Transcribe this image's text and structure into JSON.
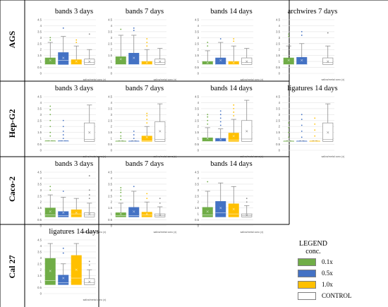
{
  "colors": {
    "c01": "#70AD47",
    "c05": "#4472C4",
    "c10": "#FFC000",
    "control": "#FFFFFF",
    "outline": "#7F7F7F",
    "frame": "#000000",
    "grid": "#E3E3E3"
  },
  "legend": {
    "title_line1": "LEGEND",
    "title_line2": "conc.",
    "items": [
      {
        "label": "0.1x",
        "color": "#70AD47"
      },
      {
        "label": "0.5x",
        "color": "#4472C4"
      },
      {
        "label": "1.0x",
        "color": "#FFC000"
      },
      {
        "label": "CONTROL",
        "color": "#FFFFFF"
      }
    ]
  },
  "rows": [
    {
      "label": "AGS"
    },
    {
      "label": "Hep-G2"
    },
    {
      "label": "Caco-2"
    },
    {
      "label": "Cal 27"
    }
  ],
  "chart_data": [
    {
      "type": "box",
      "row": "AGS",
      "title": "bands 3 days",
      "xlabel": "saliva/metal conc (x)",
      "ylim": [
        0,
        4.5
      ],
      "yticks": [
        "0",
        "0.5",
        "1",
        "1.5",
        "2",
        "2.5",
        "3",
        "3.5",
        "4",
        "4.5"
      ],
      "grid": true,
      "series": [
        {
          "group": "0.1x",
          "min": 0.75,
          "q1": 0.75,
          "median": 0.75,
          "q3": 1.3,
          "max": 2.6,
          "mean": 1.1,
          "outliers": [
            2.8,
            3.0
          ]
        },
        {
          "group": "0.5x",
          "min": 0.75,
          "q1": 0.75,
          "median": 1.1,
          "q3": 1.75,
          "max": 3.1,
          "mean": 1.3,
          "outliers": [
            3.8
          ]
        },
        {
          "group": "1.0x",
          "min": 0.75,
          "q1": 0.75,
          "median": 0.75,
          "q3": 1.15,
          "max": 2.3,
          "mean": 1.0,
          "outliers": [
            2.6,
            2.8
          ]
        },
        {
          "group": "CONTROL",
          "min": 0.75,
          "q1": 0.75,
          "median": 0.9,
          "q3": 1.2,
          "max": 2.0,
          "mean": 1.0,
          "outliers": [
            3.3
          ]
        }
      ]
    },
    {
      "type": "box",
      "row": "AGS",
      "title": "bands 7 days",
      "xlabel": "saliva/metal conc (x)",
      "ylim": [
        0,
        4.5
      ],
      "yticks": [
        "0",
        "0.5",
        "1",
        "1.5",
        "2",
        "2.5",
        "3",
        "3.5",
        "4",
        "4.5"
      ],
      "grid": true,
      "series": [
        {
          "group": "0.1x",
          "min": 0.75,
          "q1": 0.75,
          "median": 0.75,
          "q3": 1.4,
          "max": 3.2,
          "mean": 1.2,
          "outliers": [
            3.7
          ]
        },
        {
          "group": "0.5x",
          "min": 0.75,
          "q1": 0.75,
          "median": 0.75,
          "q3": 1.7,
          "max": 3.2,
          "mean": 1.3,
          "outliers": [
            3.6,
            3.8
          ]
        },
        {
          "group": "1.0x",
          "min": 0.75,
          "q1": 0.75,
          "median": 0.75,
          "q3": 1.0,
          "max": 2.0,
          "mean": 0.9,
          "outliers": [
            2.3,
            2.6,
            2.9
          ]
        },
        {
          "group": "CONTROL",
          "min": 0.75,
          "q1": 0.75,
          "median": 0.9,
          "q3": 1.2,
          "max": 2.1,
          "mean": 1.0,
          "outliers": []
        }
      ]
    },
    {
      "type": "box",
      "row": "AGS",
      "title": "bands 14 days",
      "xlabel": "saliva/metal conc (x)",
      "ylim": [
        0,
        4.5
      ],
      "yticks": [
        "0",
        "0.5",
        "1",
        "1.5",
        "2",
        "2.5",
        "3",
        "3.5",
        "4",
        "4.5"
      ],
      "grid": true,
      "series": [
        {
          "group": "0.1x",
          "min": 0.75,
          "q1": 0.75,
          "median": 0.75,
          "q3": 1.0,
          "max": 1.9,
          "mean": 0.9,
          "outliers": [
            2.3,
            2.6
          ]
        },
        {
          "group": "0.5x",
          "min": 0.75,
          "q1": 0.75,
          "median": 0.75,
          "q3": 1.3,
          "max": 2.6,
          "mean": 1.1,
          "outliers": [
            2.9
          ]
        },
        {
          "group": "1.0x",
          "min": 0.75,
          "q1": 0.75,
          "median": 0.75,
          "q3": 1.0,
          "max": 2.3,
          "mean": 0.9,
          "outliers": [
            2.7,
            2.9
          ]
        },
        {
          "group": "CONTROL",
          "min": 0.75,
          "q1": 0.75,
          "median": 0.9,
          "q3": 1.3,
          "max": 2.1,
          "mean": 1.0,
          "outliers": []
        }
      ]
    },
    {
      "type": "box",
      "row": "AGS",
      "title": "archwires 7 days",
      "xlabel": "saliva/metal conc (x)",
      "ylim": [
        0,
        4.5
      ],
      "yticks": [
        "0",
        "0.5",
        "1",
        "1.5",
        "2",
        "2.5",
        "3",
        "3.5",
        "4",
        "4.5"
      ],
      "grid": true,
      "series": [
        {
          "group": "0.1x",
          "min": 0.75,
          "q1": 0.75,
          "median": 0.75,
          "q3": 1.3,
          "max": 2.3,
          "mean": 1.1,
          "outliers": [
            3.1,
            3.3
          ]
        },
        {
          "group": "0.5x",
          "min": 0.75,
          "q1": 0.75,
          "median": 0.75,
          "q3": 1.35,
          "max": 2.5,
          "mean": 1.1,
          "outliers": [
            3.2,
            3.5
          ]
        },
        {
          "group": "CONTROL",
          "min": 0.75,
          "q1": 0.75,
          "median": 0.9,
          "q3": 1.3,
          "max": 2.3,
          "mean": 1.0,
          "outliers": [
            3.4
          ]
        }
      ]
    },
    {
      "type": "box",
      "row": "Hep-G2",
      "title": "bands 3 days",
      "xlabel": "saliva/metal conc (x)",
      "ylim": [
        0,
        4.5
      ],
      "yticks": [
        "0",
        "0.5",
        "1",
        "1.5",
        "2",
        "2.5",
        "3",
        "3.5",
        "4",
        "4.5"
      ],
      "grid": true,
      "series": [
        {
          "group": "0.1x",
          "min": 0.75,
          "q1": 0.75,
          "median": 0.75,
          "q3": 0.8,
          "max": 0.8,
          "mean": 0.8,
          "outliers": [
            1.2,
            1.5,
            2.0,
            2.5,
            3.0,
            3.4,
            3.7
          ]
        },
        {
          "group": "0.5x",
          "min": 0.75,
          "q1": 0.75,
          "median": 0.75,
          "q3": 0.8,
          "max": 0.8,
          "mean": 0.8,
          "outliers": [
            1.0,
            1.3,
            1.6,
            2.0,
            2.5
          ]
        },
        {
          "group": "CONTROL",
          "min": 0.75,
          "q1": 0.75,
          "median": 0.9,
          "q3": 2.3,
          "max": 3.8,
          "mean": 1.5,
          "outliers": []
        }
      ]
    },
    {
      "type": "box",
      "row": "Hep-G2",
      "title": "bands 7 days",
      "xlabel": "saliva/metal conc (x)",
      "ylim": [
        0,
        4.5
      ],
      "yticks": [
        "0",
        "0.5",
        "1",
        "1.5",
        "2",
        "2.5",
        "3",
        "3.5",
        "4",
        "4.5"
      ],
      "grid": true,
      "series": [
        {
          "group": "0.1x",
          "min": 0.75,
          "q1": 0.75,
          "median": 0.75,
          "q3": 0.78,
          "max": 0.8,
          "mean": 0.8,
          "outliers": [
            1.0,
            1.2,
            1.5
          ]
        },
        {
          "group": "0.5x",
          "min": 0.75,
          "q1": 0.75,
          "median": 0.75,
          "q3": 0.78,
          "max": 0.8,
          "mean": 0.8,
          "outliers": [
            1.0,
            1.3,
            1.6
          ]
        },
        {
          "group": "1.0x",
          "min": 0.75,
          "q1": 0.75,
          "median": 0.8,
          "q3": 1.2,
          "max": 2.0,
          "mean": 1.1,
          "outliers": [
            2.3,
            2.6,
            2.9,
            3.1
          ]
        },
        {
          "group": "CONTROL",
          "min": 0.75,
          "q1": 0.75,
          "median": 0.9,
          "q3": 2.4,
          "max": 3.9,
          "mean": 1.6,
          "outliers": []
        }
      ]
    },
    {
      "type": "box",
      "row": "Hep-G2",
      "title": "bands 14 days",
      "xlabel": "saliva/metal conc (x)",
      "ylim": [
        0,
        4.5
      ],
      "yticks": [
        "0",
        "0.5",
        "1",
        "1.5",
        "2",
        "2.5",
        "3",
        "3.5",
        "4",
        "4.5"
      ],
      "grid": true,
      "series": [
        {
          "group": "0.1x",
          "min": 0.75,
          "q1": 0.75,
          "median": 0.75,
          "q3": 1.05,
          "max": 1.9,
          "mean": 1.0,
          "outliers": [
            2.2,
            2.5,
            2.8,
            3.0
          ]
        },
        {
          "group": "0.5x",
          "min": 0.75,
          "q1": 0.75,
          "median": 0.75,
          "q3": 1.0,
          "max": 1.8,
          "mean": 0.9,
          "outliers": [
            2.1,
            2.4,
            2.7,
            3.0,
            3.3
          ]
        },
        {
          "group": "1.0x",
          "min": 0.75,
          "q1": 0.75,
          "median": 0.85,
          "q3": 1.45,
          "max": 2.6,
          "mean": 1.2,
          "outliers": [
            2.9,
            3.2,
            3.5,
            3.8
          ]
        },
        {
          "group": "CONTROL",
          "min": 0.75,
          "q1": 0.75,
          "median": 0.95,
          "q3": 2.5,
          "max": 4.2,
          "mean": 1.6,
          "outliers": []
        }
      ]
    },
    {
      "type": "box",
      "row": "Hep-G2",
      "title": "ligatures 14 days",
      "xlabel": "saliva/metal conc (x)",
      "ylim": [
        0,
        4.5
      ],
      "yticks": [
        "0",
        "0.5",
        "1",
        "1.5",
        "2",
        "2.5",
        "3",
        "3.5",
        "4",
        "4.5"
      ],
      "grid": true,
      "series": [
        {
          "group": "0.1x",
          "min": 0.75,
          "q1": 0.75,
          "median": 0.75,
          "q3": 0.78,
          "max": 0.8,
          "mean": 0.8,
          "outliers": [
            1.1,
            1.5,
            1.9,
            2.3
          ]
        },
        {
          "group": "0.5x",
          "min": 0.75,
          "q1": 0.75,
          "median": 0.75,
          "q3": 0.78,
          "max": 0.8,
          "mean": 0.8,
          "outliers": [
            1.1,
            1.6,
            2.1,
            2.6,
            3.0
          ]
        },
        {
          "group": "1.0x",
          "min": 0.75,
          "q1": 0.75,
          "median": 0.75,
          "q3": 0.78,
          "max": 0.8,
          "mean": 0.8,
          "outliers": [
            1.2,
            1.7,
            2.2,
            2.7
          ]
        },
        {
          "group": "CONTROL",
          "min": 0.75,
          "q1": 0.75,
          "median": 0.9,
          "q3": 2.3,
          "max": 3.9,
          "mean": 1.5,
          "outliers": []
        }
      ]
    },
    {
      "type": "box",
      "row": "Caco-2",
      "title": "bands 3 days",
      "xlabel": "saliva/metal conc (x)",
      "ylim": [
        0,
        4.5
      ],
      "yticks": [
        "0",
        "0.5",
        "1",
        "1.5",
        "2",
        "2.5",
        "3",
        "3.5",
        "4",
        "4.5"
      ],
      "grid": true,
      "series": [
        {
          "group": "0.1x",
          "min": 0.75,
          "q1": 0.75,
          "median": 0.9,
          "q3": 1.5,
          "max": 2.6,
          "mean": 1.2,
          "outliers": [
            3.0,
            3.3
          ]
        },
        {
          "group": "0.5x",
          "min": 0.75,
          "q1": 0.75,
          "median": 0.85,
          "q3": 1.2,
          "max": 2.4,
          "mean": 1.1,
          "outliers": [
            2.9
          ]
        },
        {
          "group": "1.0x",
          "min": 0.75,
          "q1": 0.75,
          "median": 1.0,
          "q3": 1.35,
          "max": 2.3,
          "mean": 1.1,
          "outliers": []
        },
        {
          "group": "CONTROL",
          "min": 0.75,
          "q1": 0.75,
          "median": 0.9,
          "q3": 1.1,
          "max": 1.9,
          "mean": 1.0,
          "outliers": [
            2.3,
            2.6,
            3.0,
            4.2
          ]
        }
      ]
    },
    {
      "type": "box",
      "row": "Caco-2",
      "title": "bands 7 days",
      "xlabel": "saliva/metal conc (x)",
      "ylim": [
        0,
        4.5
      ],
      "yticks": [
        "0",
        "0.5",
        "1",
        "1.5",
        "2",
        "2.5",
        "3",
        "3.5",
        "4",
        "4.5"
      ],
      "grid": true,
      "series": [
        {
          "group": "0.1x",
          "min": 0.75,
          "q1": 0.75,
          "median": 0.85,
          "q3": 1.1,
          "max": 1.9,
          "mean": 1.0,
          "outliers": [
            2.2,
            2.5,
            2.8,
            3.0,
            3.2
          ]
        },
        {
          "group": "0.5x",
          "min": 0.75,
          "q1": 0.75,
          "median": 0.85,
          "q3": 1.55,
          "max": 2.9,
          "mean": 1.2,
          "outliers": [
            3.3
          ]
        },
        {
          "group": "1.0x",
          "min": 0.75,
          "q1": 0.75,
          "median": 0.9,
          "q3": 1.15,
          "max": 2.0,
          "mean": 1.0,
          "outliers": [
            2.3,
            2.7
          ]
        },
        {
          "group": "CONTROL",
          "min": 0.75,
          "q1": 0.75,
          "median": 0.85,
          "q3": 1.0,
          "max": 1.6,
          "mean": 0.9,
          "outliers": [
            1.9,
            2.3
          ]
        }
      ]
    },
    {
      "type": "box",
      "row": "Caco-2",
      "title": "bands 14 days",
      "xlabel": "saliva/metal conc (x)",
      "ylim": [
        0,
        4.5
      ],
      "yticks": [
        "0",
        "0.5",
        "1",
        "1.5",
        "2",
        "2.5",
        "3",
        "3.5",
        "4",
        "4.5"
      ],
      "grid": true,
      "series": [
        {
          "group": "0.1x",
          "min": 0.75,
          "q1": 0.75,
          "median": 0.9,
          "q3": 1.55,
          "max": 2.9,
          "mean": 1.2,
          "outliers": [
            3.7
          ]
        },
        {
          "group": "0.5x",
          "min": 0.75,
          "q1": 0.75,
          "median": 1.1,
          "q3": 2.05,
          "max": 3.6,
          "mean": 1.5,
          "outliers": []
        },
        {
          "group": "1.0x",
          "min": 0.75,
          "q1": 0.75,
          "median": 1.0,
          "q3": 1.85,
          "max": 3.3,
          "mean": 1.4,
          "outliers": []
        },
        {
          "group": "CONTROL",
          "min": 0.75,
          "q1": 0.75,
          "median": 0.85,
          "q3": 1.0,
          "max": 1.7,
          "mean": 0.9,
          "outliers": [
            2.0,
            2.3
          ]
        }
      ]
    },
    {
      "type": "box",
      "row": "Cal 27",
      "title": "ligatures 14 days",
      "xlabel": "saliva/metal conc (x)",
      "ylim": [
        0,
        4.5
      ],
      "yticks": [
        "0",
        "0.5",
        "1",
        "1.5",
        "2",
        "2.5",
        "3",
        "3.5",
        "4",
        "4.5"
      ],
      "grid": true,
      "series": [
        {
          "group": "0.1x",
          "min": 0.75,
          "q1": 0.75,
          "median": 1.1,
          "q3": 2.95,
          "max": 4.2,
          "mean": 1.9,
          "outliers": []
        },
        {
          "group": "0.5x",
          "min": 0.75,
          "q1": 0.75,
          "median": 0.9,
          "q3": 1.55,
          "max": 2.5,
          "mean": 1.3,
          "outliers": [
            3.4,
            3.8
          ]
        },
        {
          "group": "1.0x",
          "min": 0.75,
          "q1": 0.75,
          "median": 1.3,
          "q3": 3.2,
          "max": 4.2,
          "mean": 2.0,
          "outliers": []
        },
        {
          "group": "CONTROL",
          "min": 0.75,
          "q1": 0.75,
          "median": 0.9,
          "q3": 1.25,
          "max": 2.0,
          "mean": 1.0,
          "outliers": [
            2.4,
            2.7
          ]
        }
      ]
    }
  ]
}
